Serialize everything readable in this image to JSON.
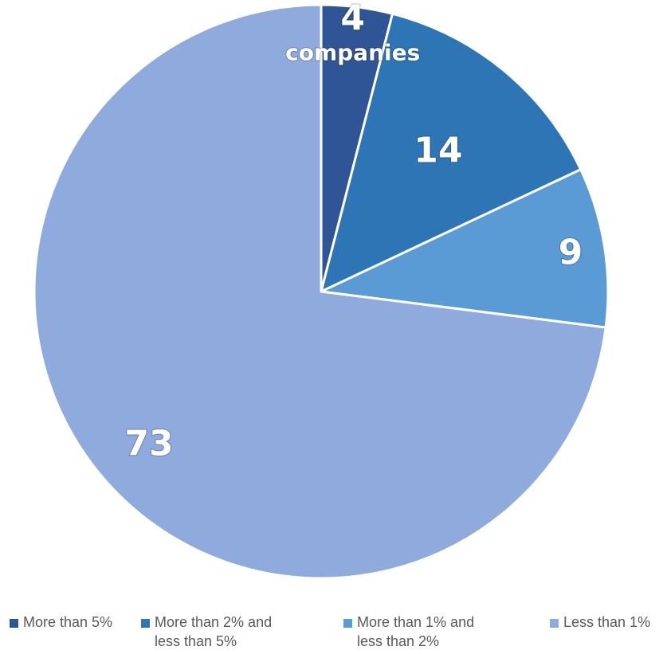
{
  "chart_data": {
    "type": "pie",
    "title": "",
    "slices": [
      {
        "name": "More than 5%",
        "value": 4,
        "label": "4",
        "sublabel": "companies",
        "color": "#2F5597"
      },
      {
        "name": "More than 2% and less than 5%",
        "value": 14,
        "label": "14",
        "color": "#2E75B6"
      },
      {
        "name": "More than 1% and less than 2%",
        "value": 9,
        "label": "9",
        "color": "#5B9BD5"
      },
      {
        "name": "Less than 1%",
        "value": 73,
        "label": "73",
        "color": "#8FAADC"
      }
    ],
    "legend": {
      "position": "bottom",
      "items": [
        {
          "line1": "More than 5%",
          "line2": ""
        },
        {
          "line1": "More than 2% and",
          "line2": "less than 5%"
        },
        {
          "line1": "More than 1% and",
          "line2": "less than 2%"
        },
        {
          "line1": "Less than 1%",
          "line2": ""
        }
      ]
    }
  }
}
